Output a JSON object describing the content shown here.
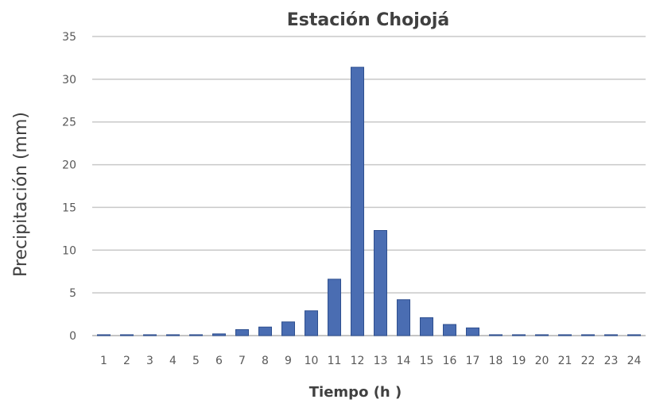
{
  "chart_data": {
    "type": "bar",
    "title": "Estación Chojojá",
    "xlabel": "Tiempo (h )",
    "ylabel": "Precipitación (mm)",
    "categories": [
      "1",
      "2",
      "3",
      "4",
      "5",
      "6",
      "7",
      "8",
      "9",
      "10",
      "11",
      "12",
      "13",
      "14",
      "15",
      "16",
      "17",
      "18",
      "19",
      "20",
      "21",
      "22",
      "23",
      "24"
    ],
    "values": [
      0.1,
      0.1,
      0.1,
      0.1,
      0.1,
      0.2,
      0.7,
      1.0,
      1.6,
      2.9,
      6.6,
      31.4,
      12.3,
      4.2,
      2.1,
      1.3,
      0.9,
      0.1,
      0.1,
      0.1,
      0.1,
      0.1,
      0.1,
      0.1
    ],
    "ylim": [
      0,
      35
    ],
    "yticks": [
      0,
      5,
      10,
      15,
      20,
      25,
      30,
      35
    ],
    "grid": true,
    "legend": "none",
    "bar_color": "#4a6db2"
  }
}
